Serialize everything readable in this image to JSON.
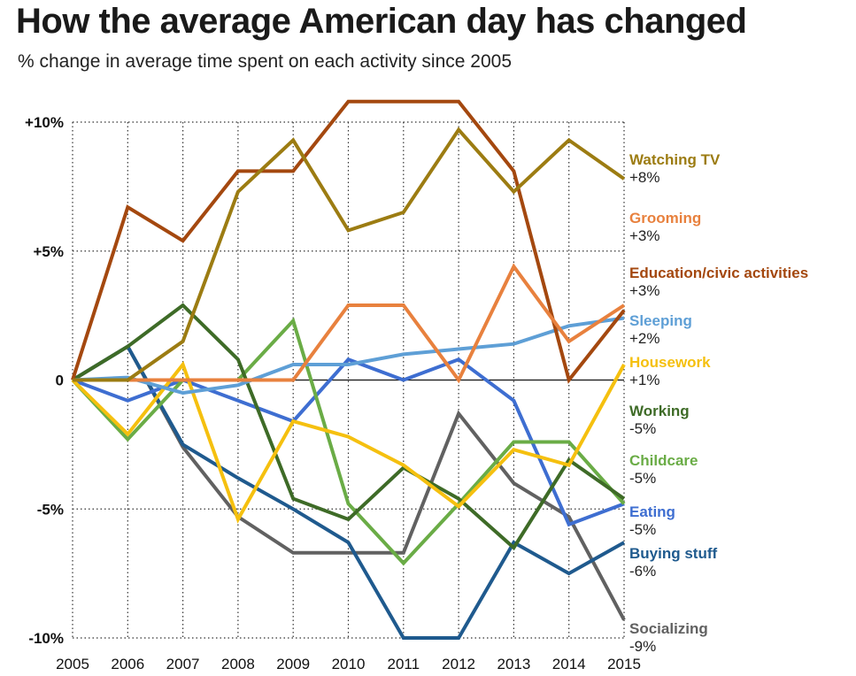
{
  "chart_data": {
    "type": "line",
    "title": "How the average American day has changed",
    "subtitle": "% change in average time spent on each activity since 2005",
    "x": [
      "2005",
      "2006",
      "2007",
      "2008",
      "2009",
      "2010",
      "2011",
      "2012",
      "2013",
      "2014",
      "2015"
    ],
    "ylim": [
      -10,
      10
    ],
    "yticks": [
      {
        "value": 10,
        "label": "+10%"
      },
      {
        "value": 5,
        "label": "+5%"
      },
      {
        "value": 0,
        "label": "0"
      },
      {
        "value": -5,
        "label": "-5%"
      },
      {
        "value": -10,
        "label": "-10%"
      }
    ],
    "grid": true,
    "series": [
      {
        "name": "Watching TV",
        "end_label": "+8%",
        "color": "#9c7c12",
        "values": [
          0,
          0,
          1.5,
          7.3,
          9.3,
          5.8,
          6.5,
          9.7,
          7.3,
          9.3,
          7.8
        ]
      },
      {
        "name": "Grooming",
        "end_label": "+3%",
        "color": "#e8813e",
        "values": [
          0,
          0,
          0,
          0,
          0,
          2.9,
          2.9,
          0,
          4.4,
          1.5,
          2.9
        ]
      },
      {
        "name": "Education/civic activities",
        "end_label": "+3%",
        "color": "#a4480f",
        "values": [
          0,
          6.7,
          5.4,
          8.1,
          8.1,
          10.8,
          10.8,
          10.8,
          8.1,
          0,
          2.7
        ]
      },
      {
        "name": "Sleeping",
        "end_label": "+2%",
        "color": "#5e9fd6",
        "values": [
          0,
          0.1,
          -0.5,
          -0.2,
          0.6,
          0.6,
          1.0,
          1.2,
          1.4,
          2.1,
          2.4
        ]
      },
      {
        "name": "Housework",
        "end_label": "+1%",
        "color": "#f5c00f",
        "values": [
          0,
          -2.1,
          0.6,
          -5.4,
          -1.6,
          -2.2,
          -3.3,
          -4.9,
          -2.7,
          -3.3,
          0.6
        ]
      },
      {
        "name": "Working",
        "end_label": "-5%",
        "color": "#3e6b27",
        "values": [
          0,
          1.3,
          2.9,
          0.8,
          -4.6,
          -5.4,
          -3.4,
          -4.6,
          -6.5,
          -3.1,
          -4.6
        ]
      },
      {
        "name": "Childcare",
        "end_label": "-5%",
        "color": "#6aac46",
        "values": [
          0,
          -2.3,
          0,
          0,
          2.3,
          -4.8,
          -7.1,
          -4.8,
          -2.4,
          -2.4,
          -4.8
        ]
      },
      {
        "name": "Eating",
        "end_label": "-5%",
        "color": "#3e6ed1",
        "values": [
          0,
          -0.8,
          0,
          -0.8,
          -1.6,
          0.8,
          0,
          0.8,
          -0.8,
          -5.6,
          -4.8
        ]
      },
      {
        "name": "Buying stuff",
        "end_label": "-6%",
        "color": "#1f5a8e",
        "values": [
          0,
          1.3,
          -2.5,
          -3.8,
          -5.0,
          -6.3,
          -10.0,
          -10.0,
          -6.3,
          -7.5,
          -6.3
        ]
      },
      {
        "name": "Socializing",
        "end_label": "-9%",
        "color": "#616161",
        "values": [
          0,
          1.3,
          -2.6,
          -5.3,
          -6.7,
          -6.7,
          -6.7,
          -1.3,
          -4.0,
          -5.3,
          -9.3
        ]
      }
    ]
  }
}
